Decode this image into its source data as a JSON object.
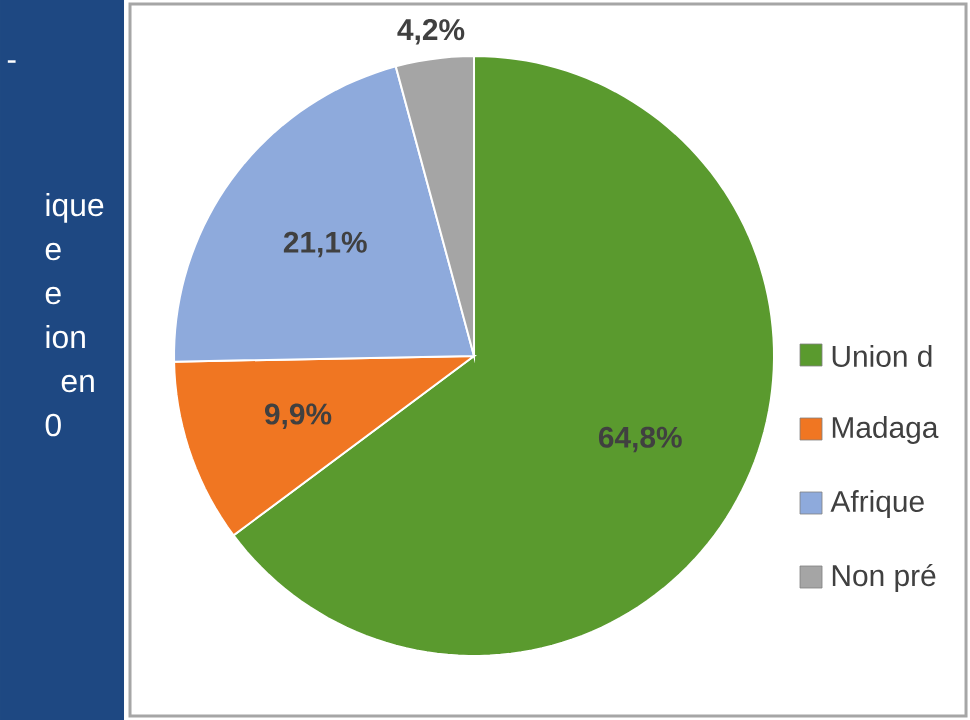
{
  "chart_data": {
    "type": "pie",
    "categories": [
      "Union d",
      "Madaga",
      "Afrique",
      "Non pré"
    ],
    "values": [
      64.8,
      9.9,
      21.1,
      4.2
    ],
    "colors": [
      "#5a9a2e",
      "#f07622",
      "#8eaadc",
      "#a5a5a5"
    ],
    "value_labels": [
      "64,8%",
      "9,9%",
      "21,1%",
      "4,2%"
    ],
    "legend": "right",
    "annotations": [
      "-",
      "ique",
      "e",
      "e",
      "ion",
      "en",
      "0"
    ]
  }
}
